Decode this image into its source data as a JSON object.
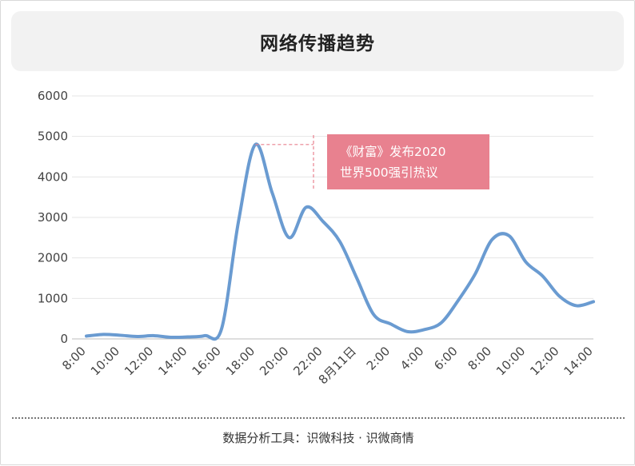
{
  "title": "网络传播趋势",
  "footer": "数据分析工具：识微科技 · 识微商情",
  "chart_data": {
    "type": "line",
    "title": "网络传播趋势",
    "xlabel": "",
    "ylabel": "",
    "ylim": [
      0,
      6000
    ],
    "yticks": [
      0,
      1000,
      2000,
      3000,
      4000,
      5000,
      6000
    ],
    "grid": true,
    "legend": "none",
    "x_tick_labels": [
      "8:00",
      "10:00",
      "12:00",
      "14:00",
      "16:00",
      "18:00",
      "20:00",
      "22:00",
      "8月11日",
      "2:00",
      "4:00",
      "6:00",
      "8:00",
      "10:00",
      "12:00",
      "14:00"
    ],
    "x": [
      "8:00",
      "9:00",
      "10:00",
      "11:00",
      "12:00",
      "13:00",
      "14:00",
      "15:00",
      "16:00",
      "17:00",
      "18:00",
      "19:00",
      "20:00",
      "21:00",
      "22:00",
      "23:00",
      "8月11日",
      "1:00",
      "2:00",
      "3:00",
      "4:00",
      "5:00",
      "6:00",
      "7:00",
      "8:00",
      "9:00",
      "10:00",
      "11:00",
      "12:00",
      "13:00",
      "14:00"
    ],
    "series": [
      {
        "color": "#6a9bd1",
        "values": [
          70,
          110,
          90,
          60,
          80,
          40,
          50,
          80,
          250,
          2900,
          4800,
          3600,
          2500,
          3250,
          2900,
          2400,
          1500,
          600,
          370,
          180,
          230,
          400,
          950,
          1600,
          2450,
          2550,
          1900,
          1550,
          1050,
          820,
          920
        ]
      }
    ],
    "annotations": [
      {
        "text_line1": "《财富》发布2020",
        "text_line2": "世界500强引热议",
        "x": "18:00",
        "y": 4800,
        "color": "#e8818f"
      }
    ]
  }
}
